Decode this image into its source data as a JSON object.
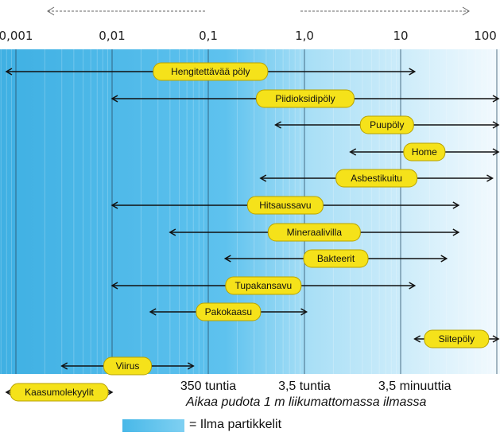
{
  "chart_data": {
    "type": "range-bar",
    "x_scale": "log",
    "x_unit": "µm",
    "xlim": [
      0.0002,
      200
    ],
    "ticks": [
      "0,001",
      "0,01",
      "0,1",
      "1,0",
      "10",
      "100 µm"
    ],
    "tick_values": [
      0.001,
      0.01,
      0.1,
      1,
      10,
      100
    ],
    "particles": [
      {
        "label": "Hengitettävää pöly",
        "min": 0.0002,
        "max": 14
      },
      {
        "label": "Piidioksidipöly",
        "min": 0.01,
        "max": 200
      },
      {
        "label": "Puupöly",
        "min": 0.5,
        "max": 200
      },
      {
        "label": "Home",
        "min": 3,
        "max": 150
      },
      {
        "label": "Asbestikuitu",
        "min": 0.35,
        "max": 90
      },
      {
        "label": "Hitsaussavu",
        "min": 0.01,
        "max": 40
      },
      {
        "label": "Mineraalivilla",
        "min": 0.04,
        "max": 40
      },
      {
        "label": "Bakteerit",
        "min": 0.15,
        "max": 30
      },
      {
        "label": "Tupakansavu",
        "min": 0.01,
        "max": 14
      },
      {
        "label": "Pakokaasu",
        "min": 0.025,
        "max": 1.05
      },
      {
        "label": "Siitepöly",
        "min": 14,
        "max": 200
      },
      {
        "label": "Viirus",
        "min": 0.003,
        "max": 0.07
      },
      {
        "label": "Kaasumolekyylit",
        "min": 0.0002,
        "max": 0.01
      }
    ],
    "time_markers": [
      {
        "label": "350 tuntia",
        "value": 0.1
      },
      {
        "label": "3,5 tuntia",
        "value": 1
      },
      {
        "label": "3,5 minuuttia",
        "value": 14
      }
    ]
  },
  "caption": "Aikaa pudota 1 m liikumattomassa ilmassa",
  "legend": {
    "label": "= Ilma partikkelit"
  },
  "colors": {
    "band_left": "#3fb0e3",
    "band_mid": "#5dc0ec",
    "band_right": "#eef8fd",
    "label_fill": "#f5e21a",
    "label_stroke": "#b8a200"
  }
}
